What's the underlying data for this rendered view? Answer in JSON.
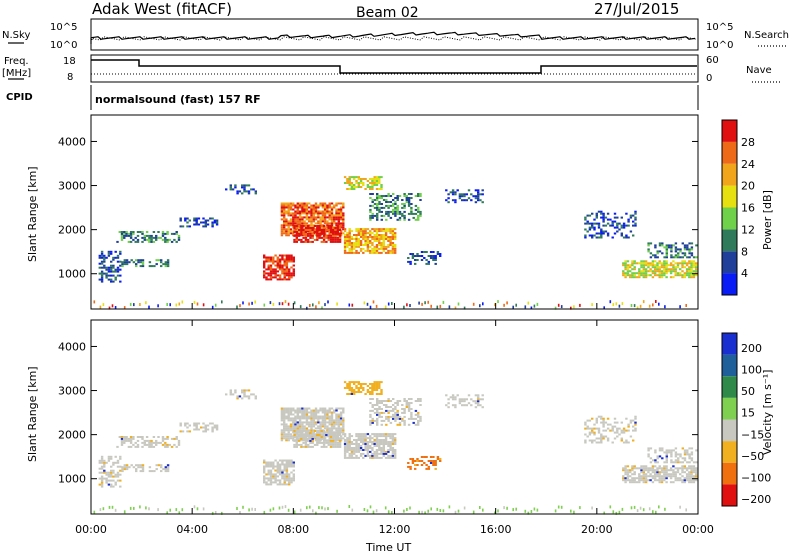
{
  "header": {
    "title": "Adak West (fitACF)",
    "beam": "Beam 02",
    "date": "27/Jul/2015"
  },
  "top_panels": {
    "nsky": {
      "label": "N.Sky",
      "ticks": [
        "10^5",
        "10^0"
      ],
      "right_label": "N.Search",
      "right_ticks": [
        "10^5",
        "10^0"
      ]
    },
    "freq": {
      "label_line1": "Freq.",
      "label_line2": "[MHz]",
      "ticks": [
        "18",
        "8"
      ],
      "right_label": "Nave",
      "right_ticks": [
        "60",
        "0"
      ]
    },
    "cpid": {
      "label": "CPID",
      "text": "normalsound (fast) 157 RF"
    }
  },
  "chart_data": [
    {
      "type": "heatmap",
      "name": "power",
      "ylabel": "Slant Range [km]",
      "yticks": [
        1000,
        2000,
        3000,
        4000
      ],
      "ylim": [
        200,
        4600
      ],
      "colorbar_label": "Power [dB]",
      "colorbar_ticks": [
        4,
        8,
        12,
        16,
        20,
        24,
        28
      ],
      "colorbar_colors": [
        "#0a1cf5",
        "#1f3f9a",
        "#2f7a5a",
        "#6fd04a",
        "#e6e010",
        "#f0a51a",
        "#ee6a18",
        "#e01010"
      ],
      "colorbar_range": [
        0,
        32
      ]
    },
    {
      "type": "heatmap",
      "name": "velocity",
      "ylabel": "Slant Range [km]",
      "yticks": [
        1000,
        2000,
        3000,
        4000
      ],
      "ylim": [
        200,
        4600
      ],
      "colorbar_label": "Velocity [m s⁻¹]",
      "colorbar_ticks": [
        "200",
        "100",
        "50",
        "15",
        "−15",
        "−50",
        "−100",
        "−200"
      ],
      "colorbar_colors": [
        "#1a2fd0",
        "#1f5f9a",
        "#2f8a4a",
        "#7fd050",
        "#c8c8c0",
        "#f0b020",
        "#f07010",
        "#e01010"
      ]
    }
  ],
  "xaxis": {
    "label": "Time UT",
    "ticks": [
      "00:00",
      "04:00",
      "08:00",
      "12:00",
      "16:00",
      "20:00",
      "00:00"
    ],
    "xlim": [
      0,
      24
    ]
  }
}
